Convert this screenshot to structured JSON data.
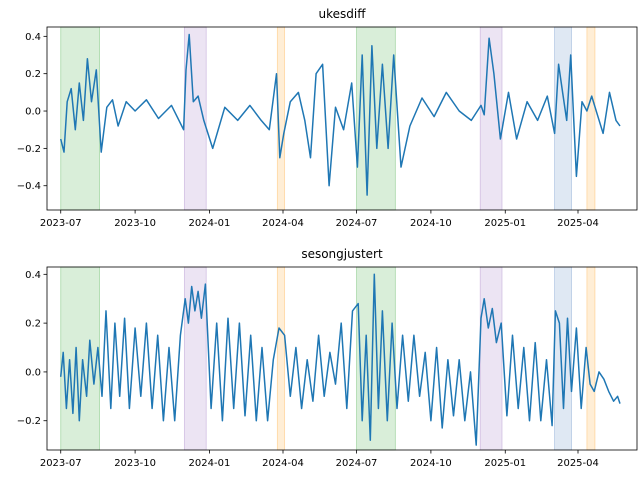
{
  "chart_data": [
    {
      "type": "line",
      "title": "ukesdiff",
      "xlabel": "",
      "ylabel": "",
      "x_range": [
        "2023-06-14",
        "2025-06-13"
      ],
      "ylim": [
        -0.53,
        0.45
      ],
      "x_ticks": [
        "2023-07-01",
        "2023-10-01",
        "2024-01-01",
        "2024-04-01",
        "2024-07-01",
        "2024-10-01",
        "2025-01-01",
        "2025-04-01"
      ],
      "x_tick_labels": [
        "2023-07",
        "2023-10",
        "2024-01",
        "2024-04",
        "2024-07",
        "2024-10",
        "2025-01",
        "2025-04"
      ],
      "y_ticks": [
        -0.4,
        -0.2,
        0.0,
        0.2,
        0.4
      ],
      "y_tick_labels": [
        "−0.4",
        "−0.2",
        "0.0",
        "0.2",
        "0.4"
      ],
      "grid": false,
      "line_color": "#1f77b4",
      "shaded_periods": [
        {
          "start": "2023-07-01",
          "end": "2023-08-18",
          "color": "#2ca02c"
        },
        {
          "start": "2023-12-01",
          "end": "2023-12-28",
          "color": "#9467bd"
        },
        {
          "start": "2024-03-25",
          "end": "2024-04-03",
          "color": "#ff9f1c"
        },
        {
          "start": "2024-07-01",
          "end": "2024-08-18",
          "color": "#2ca02c"
        },
        {
          "start": "2024-12-01",
          "end": "2024-12-28",
          "color": "#9467bd"
        },
        {
          "start": "2025-03-03",
          "end": "2025-03-24",
          "color": "#4f7fbf"
        },
        {
          "start": "2025-04-12",
          "end": "2025-04-22",
          "color": "#ff9f1c"
        }
      ],
      "series": [
        {
          "x": [
            "2023-07-01",
            "2023-07-05",
            "2023-07-09",
            "2023-07-14",
            "2023-07-19",
            "2023-07-24",
            "2023-07-29",
            "2023-08-03",
            "2023-08-08",
            "2023-08-14",
            "2023-08-20",
            "2023-08-27",
            "2023-09-03",
            "2023-09-10",
            "2023-09-20",
            "2023-10-01",
            "2023-10-15",
            "2023-10-30",
            "2023-11-15",
            "2023-11-30",
            "2023-12-03",
            "2023-12-07",
            "2023-12-12",
            "2023-12-18",
            "2023-12-25",
            "2024-01-05",
            "2024-01-20",
            "2024-02-05",
            "2024-02-20",
            "2024-03-05",
            "2024-03-15",
            "2024-03-24",
            "2024-03-28",
            "2024-04-02",
            "2024-04-10",
            "2024-04-20",
            "2024-04-28",
            "2024-05-05",
            "2024-05-12",
            "2024-05-20",
            "2024-05-28",
            "2024-06-05",
            "2024-06-15",
            "2024-06-25",
            "2024-07-02",
            "2024-07-08",
            "2024-07-14",
            "2024-07-20",
            "2024-07-26",
            "2024-08-02",
            "2024-08-09",
            "2024-08-16",
            "2024-08-25",
            "2024-09-05",
            "2024-09-20",
            "2024-10-05",
            "2024-10-20",
            "2024-11-05",
            "2024-11-20",
            "2024-12-02",
            "2024-12-06",
            "2024-12-12",
            "2024-12-18",
            "2024-12-26",
            "2025-01-05",
            "2025-01-15",
            "2025-01-28",
            "2025-02-10",
            "2025-02-22",
            "2025-03-03",
            "2025-03-08",
            "2025-03-13",
            "2025-03-18",
            "2025-03-23",
            "2025-03-30",
            "2025-04-06",
            "2025-04-12",
            "2025-04-18",
            "2025-04-25",
            "2025-05-02",
            "2025-05-10",
            "2025-05-18",
            "2025-05-23"
          ],
          "y": [
            -0.15,
            -0.22,
            0.05,
            0.12,
            -0.1,
            0.15,
            -0.05,
            0.28,
            0.05,
            0.22,
            -0.22,
            0.02,
            0.06,
            -0.08,
            0.05,
            0.0,
            0.06,
            -0.04,
            0.03,
            -0.1,
            0.22,
            0.41,
            0.05,
            0.08,
            -0.05,
            -0.2,
            0.02,
            -0.05,
            0.03,
            -0.05,
            -0.1,
            0.2,
            -0.25,
            -0.12,
            0.05,
            0.1,
            -0.05,
            -0.25,
            0.2,
            0.25,
            -0.4,
            0.02,
            -0.1,
            0.15,
            -0.3,
            0.3,
            -0.45,
            0.35,
            -0.2,
            0.25,
            -0.2,
            0.3,
            -0.3,
            -0.08,
            0.07,
            -0.03,
            0.1,
            0.0,
            -0.05,
            0.03,
            -0.02,
            0.39,
            0.2,
            -0.15,
            0.1,
            -0.15,
            0.05,
            -0.05,
            0.08,
            -0.12,
            0.25,
            0.1,
            -0.05,
            0.3,
            -0.35,
            0.05,
            0.0,
            0.08,
            -0.02,
            -0.12,
            0.1,
            -0.05,
            -0.08
          ]
        }
      ]
    },
    {
      "type": "line",
      "title": "sesongjustert",
      "xlabel": "",
      "ylabel": "",
      "x_range": [
        "2023-06-14",
        "2025-06-13"
      ],
      "ylim": [
        -0.32,
        0.43
      ],
      "x_ticks": [
        "2023-07-01",
        "2023-10-01",
        "2024-01-01",
        "2024-04-01",
        "2024-07-01",
        "2024-10-01",
        "2025-01-01",
        "2025-04-01"
      ],
      "x_tick_labels": [
        "2023-07",
        "2023-10",
        "2024-01",
        "2024-04",
        "2024-07",
        "2024-10",
        "2025-01",
        "2025-04"
      ],
      "y_ticks": [
        -0.2,
        0.0,
        0.2,
        0.4
      ],
      "y_tick_labels": [
        "−0.2",
        "0.0",
        "0.2",
        "0.4"
      ],
      "grid": false,
      "line_color": "#1f77b4",
      "shaded_periods": [
        {
          "start": "2023-07-01",
          "end": "2023-08-18",
          "color": "#2ca02c"
        },
        {
          "start": "2023-12-01",
          "end": "2023-12-28",
          "color": "#9467bd"
        },
        {
          "start": "2024-03-25",
          "end": "2024-04-03",
          "color": "#ff9f1c"
        },
        {
          "start": "2024-07-01",
          "end": "2024-08-18",
          "color": "#2ca02c"
        },
        {
          "start": "2024-12-01",
          "end": "2024-12-28",
          "color": "#9467bd"
        },
        {
          "start": "2025-03-03",
          "end": "2025-03-24",
          "color": "#4f7fbf"
        },
        {
          "start": "2025-04-12",
          "end": "2025-04-22",
          "color": "#ff9f1c"
        }
      ],
      "series": [
        {
          "x": [
            "2023-07-01",
            "2023-07-04",
            "2023-07-08",
            "2023-07-12",
            "2023-07-16",
            "2023-07-20",
            "2023-07-24",
            "2023-07-28",
            "2023-08-02",
            "2023-08-06",
            "2023-08-11",
            "2023-08-16",
            "2023-08-21",
            "2023-08-26",
            "2023-09-01",
            "2023-09-06",
            "2023-09-12",
            "2023-09-18",
            "2023-09-24",
            "2023-10-01",
            "2023-10-08",
            "2023-10-15",
            "2023-10-22",
            "2023-10-29",
            "2023-11-05",
            "2023-11-12",
            "2023-11-19",
            "2023-11-26",
            "2023-12-02",
            "2023-12-06",
            "2023-12-10",
            "2023-12-14",
            "2023-12-18",
            "2023-12-22",
            "2023-12-27",
            "2024-01-03",
            "2024-01-10",
            "2024-01-17",
            "2024-01-24",
            "2024-01-31",
            "2024-02-07",
            "2024-02-14",
            "2024-02-21",
            "2024-02-28",
            "2024-03-06",
            "2024-03-13",
            "2024-03-20",
            "2024-03-27",
            "2024-04-03",
            "2024-04-10",
            "2024-04-17",
            "2024-04-24",
            "2024-05-01",
            "2024-05-08",
            "2024-05-15",
            "2024-05-22",
            "2024-05-29",
            "2024-06-05",
            "2024-06-12",
            "2024-06-19",
            "2024-06-26",
            "2024-07-03",
            "2024-07-08",
            "2024-07-13",
            "2024-07-18",
            "2024-07-23",
            "2024-07-28",
            "2024-08-02",
            "2024-08-08",
            "2024-08-14",
            "2024-08-20",
            "2024-08-27",
            "2024-09-03",
            "2024-09-10",
            "2024-09-17",
            "2024-09-24",
            "2024-10-01",
            "2024-10-08",
            "2024-10-15",
            "2024-10-22",
            "2024-10-29",
            "2024-11-05",
            "2024-11-12",
            "2024-11-19",
            "2024-11-26",
            "2024-12-02",
            "2024-12-06",
            "2024-12-11",
            "2024-12-16",
            "2024-12-21",
            "2024-12-27",
            "2025-01-03",
            "2025-01-10",
            "2025-01-17",
            "2025-01-24",
            "2025-01-31",
            "2025-02-07",
            "2025-02-14",
            "2025-02-21",
            "2025-02-28",
            "2025-03-04",
            "2025-03-09",
            "2025-03-14",
            "2025-03-19",
            "2025-03-24",
            "2025-03-30",
            "2025-04-05",
            "2025-04-11",
            "2025-04-16",
            "2025-04-21",
            "2025-04-27",
            "2025-05-03",
            "2025-05-09",
            "2025-05-15",
            "2025-05-20",
            "2025-05-23"
          ],
          "y": [
            -0.02,
            0.08,
            -0.15,
            0.05,
            -0.17,
            0.1,
            -0.2,
            0.05,
            -0.1,
            0.13,
            -0.05,
            0.1,
            -0.1,
            0.25,
            -0.15,
            0.2,
            -0.1,
            0.22,
            -0.15,
            0.18,
            -0.1,
            0.2,
            -0.15,
            0.15,
            -0.2,
            0.1,
            -0.2,
            0.15,
            0.3,
            0.2,
            0.35,
            0.25,
            0.33,
            0.22,
            0.36,
            -0.15,
            0.2,
            -0.2,
            0.22,
            -0.15,
            0.2,
            -0.18,
            0.15,
            -0.2,
            0.1,
            -0.2,
            0.05,
            0.18,
            0.15,
            -0.1,
            0.1,
            -0.15,
            0.05,
            -0.12,
            0.15,
            -0.1,
            0.08,
            -0.05,
            0.2,
            -0.15,
            0.25,
            0.28,
            -0.2,
            0.15,
            -0.28,
            0.4,
            -0.15,
            0.25,
            -0.2,
            0.2,
            -0.15,
            0.15,
            -0.12,
            0.15,
            -0.1,
            0.08,
            -0.2,
            0.1,
            -0.23,
            0.05,
            -0.18,
            0.05,
            -0.2,
            0.0,
            -0.3,
            0.22,
            0.3,
            0.18,
            0.26,
            0.12,
            0.2,
            -0.18,
            0.15,
            -0.15,
            0.1,
            -0.2,
            0.12,
            -0.2,
            0.05,
            -0.22,
            0.25,
            0.2,
            -0.15,
            0.22,
            -0.08,
            0.18,
            -0.15,
            0.1,
            -0.05,
            -0.08,
            0.0,
            -0.03,
            -0.08,
            -0.12,
            -0.1,
            -0.13
          ]
        }
      ]
    }
  ]
}
